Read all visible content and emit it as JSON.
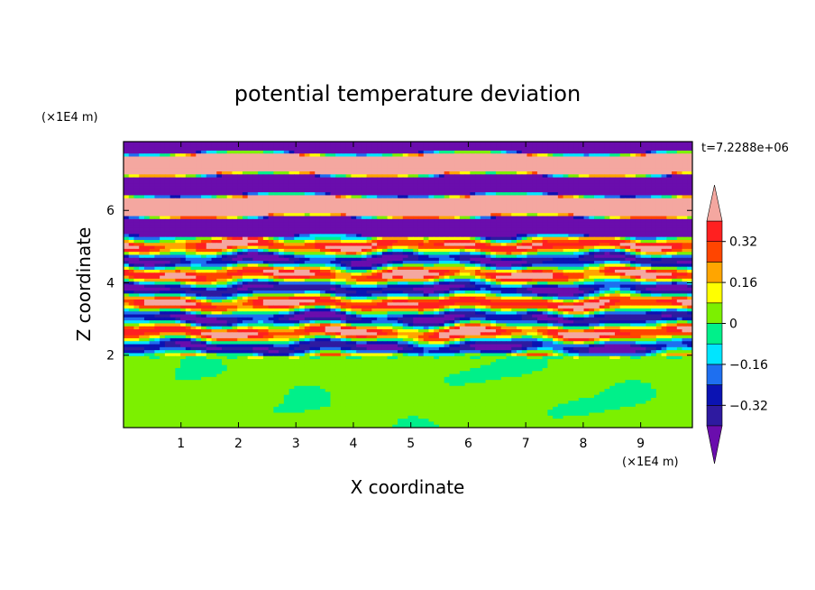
{
  "chart_data": {
    "type": "heatmap",
    "title": "potential temperature deviation",
    "xlabel": "X coordinate",
    "ylabel": "Z coordinate",
    "x_unit": "(×1E4 m)",
    "y_unit": "(×1E4 m)",
    "time_label": "t=7.2288e+06",
    "xlim": [
      0,
      9.9
    ],
    "ylim": [
      0,
      7.9
    ],
    "x_ticks": [
      1,
      2,
      3,
      4,
      5,
      6,
      7,
      8,
      9
    ],
    "y_ticks": [
      2,
      4,
      6
    ],
    "colorbar": {
      "levels": [
        -0.4,
        -0.32,
        -0.24,
        -0.16,
        -0.08,
        0,
        0.08,
        0.16,
        0.24,
        0.32,
        0.4
      ],
      "tick_labels": [
        "0.32",
        "0.16",
        "0",
        "−0.16",
        "−0.32"
      ],
      "colors": [
        "#6a0dad",
        "#2e1aa0",
        "#0b13b3",
        "#1e6ff0",
        "#00e5ff",
        "#00f08a",
        "#7cf000",
        "#ffff00",
        "#ffa500",
        "#ff4500",
        "#ff2020",
        "#f4a7a0"
      ],
      "extend": "both"
    },
    "regions": [
      {
        "name": "lower",
        "z_range": [
          0,
          2
        ],
        "dominant": [
          0,
          0.08
        ]
      },
      {
        "name": "turbulent",
        "z_range": [
          2,
          5
        ],
        "pattern": "horizontal bands, all levels"
      },
      {
        "name": "upper",
        "z_range": [
          5,
          7.9
        ],
        "pattern": "alternating bands",
        "dominant": [
          -0.4,
          0.4
        ]
      }
    ]
  }
}
